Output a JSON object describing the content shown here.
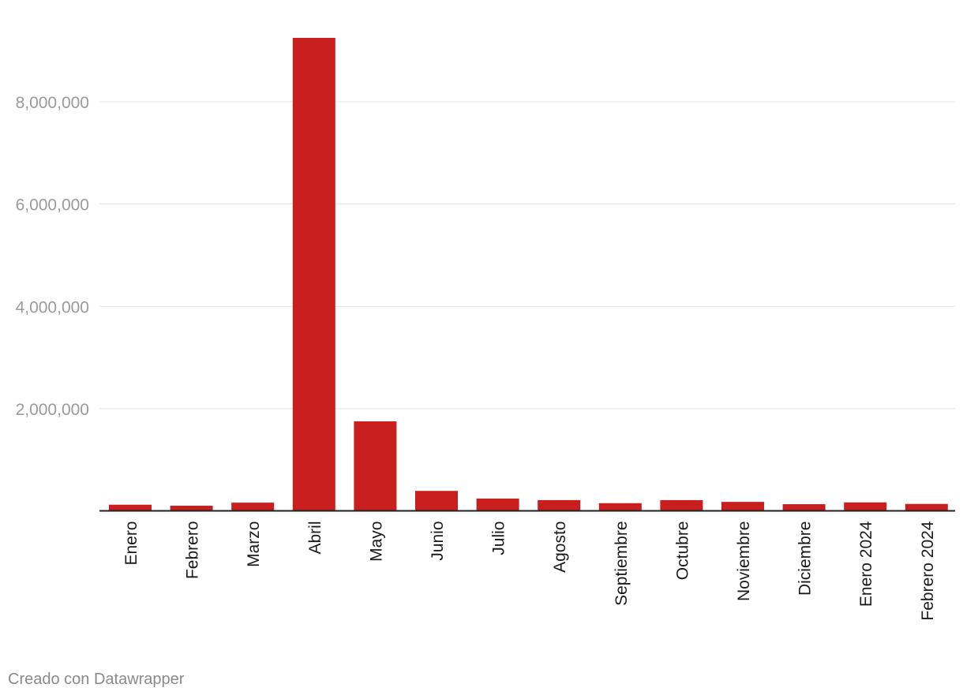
{
  "footer": {
    "credit": "Creado con Datawrapper"
  },
  "colors": {
    "bar": "#c81e1e",
    "grid": "#e3e3e3",
    "baseline": "#222222",
    "y_tick_text": "#9a9a9a",
    "x_tick_text": "#1a1a1a"
  },
  "chart_data": {
    "type": "bar",
    "title": "",
    "xlabel": "",
    "ylabel": "",
    "categories": [
      "Enero",
      "Febrero",
      "Marzo",
      "Abril",
      "Mayo",
      "Junio",
      "Julio",
      "Agosto",
      "Septiembre",
      "Octubre",
      "Noviembre",
      "Diciembre",
      "Enero 2024",
      "Febrero 2024"
    ],
    "values": [
      120000,
      100000,
      160000,
      9250000,
      1750000,
      390000,
      240000,
      210000,
      150000,
      210000,
      175000,
      130000,
      165000,
      135000
    ],
    "ylim": [
      0,
      9250000
    ],
    "yticks": [
      2000000,
      4000000,
      6000000,
      8000000
    ],
    "ytick_labels": [
      "2,000,000",
      "4,000,000",
      "6,000,000",
      "8,000,000"
    ],
    "grid": true,
    "legend": "none"
  }
}
